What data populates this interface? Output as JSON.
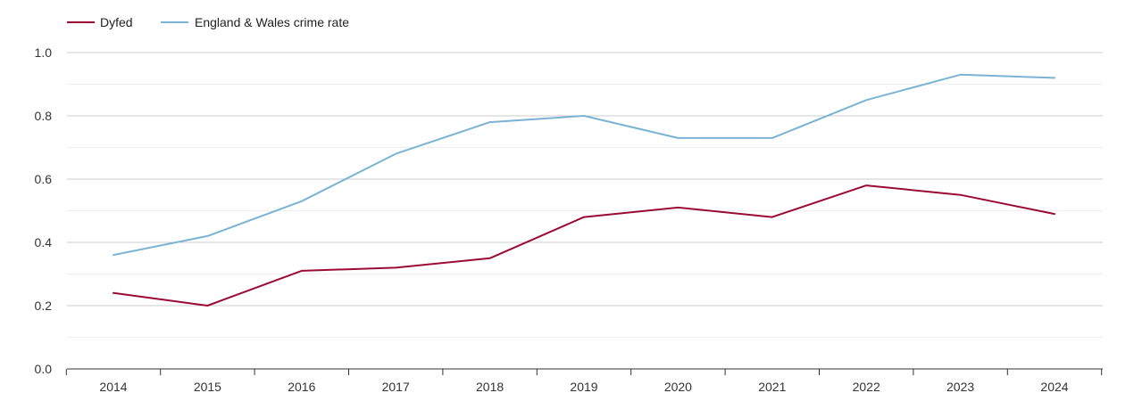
{
  "chart_data": {
    "type": "line",
    "title": "",
    "xlabel": "",
    "ylabel": "",
    "x": [
      "2014",
      "2015",
      "2016",
      "2017",
      "2018",
      "2019",
      "2020",
      "2021",
      "2022",
      "2023",
      "2024"
    ],
    "ylim": [
      0,
      1.0
    ],
    "yticks": [
      "0.0",
      "0.2",
      "0.4",
      "0.6",
      "0.8",
      "1.0"
    ],
    "grid": true,
    "legend_position": "top-left",
    "series": [
      {
        "name": "Dyfed",
        "color": "#9b0a35",
        "values": [
          0.24,
          0.2,
          0.31,
          0.32,
          0.35,
          0.48,
          0.51,
          0.48,
          0.58,
          0.55,
          0.49
        ]
      },
      {
        "name": "England & Wales crime rate",
        "color": "#7ab3d4",
        "values": [
          0.36,
          0.42,
          0.53,
          0.68,
          0.78,
          0.8,
          0.73,
          0.73,
          0.85,
          0.93,
          0.92
        ]
      }
    ]
  }
}
